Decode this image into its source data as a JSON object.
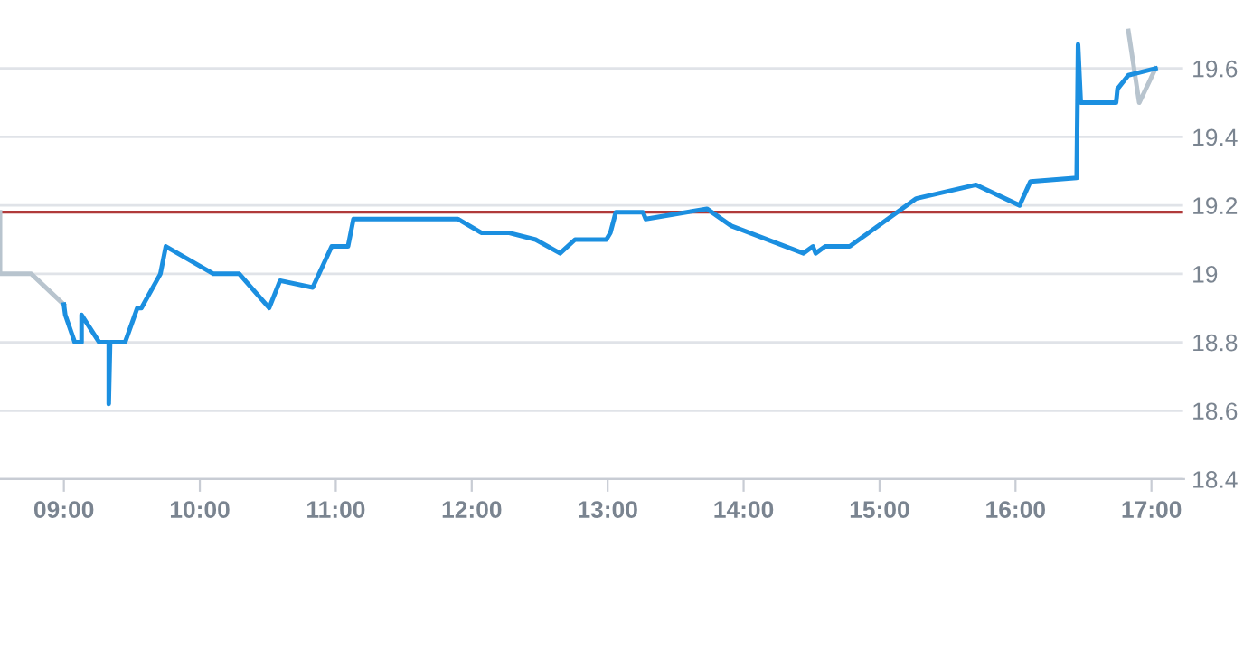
{
  "chart_data": {
    "type": "line",
    "series": [
      {
        "color": "#b8c4ce",
        "x": [
          8.53,
          8.53,
          8.76,
          9.0
        ],
        "values": [
          19.18,
          19.0,
          19.0,
          18.91
        ]
      },
      {
        "color": "#b8c4ce",
        "x": [
          16.83,
          16.91,
          17.03
        ],
        "values": [
          19.71,
          19.5,
          19.6
        ]
      },
      {
        "color": "#1b8fe0",
        "x": [
          9.0,
          9.01,
          9.08,
          9.13,
          9.13,
          9.26,
          9.33,
          9.33,
          9.34,
          9.45,
          9.54,
          9.57,
          9.71,
          9.75,
          10.1,
          10.29,
          10.51,
          10.59,
          10.83,
          10.97,
          11.09,
          11.13,
          11.9,
          12.07,
          12.27,
          12.47,
          12.65,
          12.76,
          12.99,
          13.02,
          13.06,
          13.26,
          13.28,
          13.73,
          13.91,
          14.44,
          14.51,
          14.53,
          14.6,
          14.78,
          15.27,
          15.71,
          16.03,
          16.11,
          16.45,
          16.46,
          16.48,
          16.74,
          16.75,
          16.83,
          17.03
        ],
        "values": [
          18.91,
          18.88,
          18.8,
          18.8,
          18.88,
          18.8,
          18.8,
          18.62,
          18.8,
          18.8,
          18.9,
          18.9,
          19.0,
          19.08,
          19.0,
          19.0,
          18.9,
          18.98,
          18.96,
          19.08,
          19.08,
          19.16,
          19.16,
          19.12,
          19.12,
          19.1,
          19.06,
          19.1,
          19.1,
          19.12,
          19.18,
          19.18,
          19.16,
          19.19,
          19.14,
          19.06,
          19.08,
          19.06,
          19.08,
          19.08,
          19.22,
          19.26,
          19.2,
          19.27,
          19.28,
          19.67,
          19.5,
          19.5,
          19.54,
          19.58,
          19.6
        ]
      }
    ],
    "xlim": [
      8.53,
      17.24
    ],
    "xticks": [
      {
        "value": 9,
        "label": "09:00"
      },
      {
        "value": 10,
        "label": "10:00"
      },
      {
        "value": 11,
        "label": "11:00"
      },
      {
        "value": 12,
        "label": "12:00"
      },
      {
        "value": 13,
        "label": "13:00"
      },
      {
        "value": 14,
        "label": "14:00"
      },
      {
        "value": 15,
        "label": "15:00"
      },
      {
        "value": 16,
        "label": "16:00"
      },
      {
        "value": 17,
        "label": "17:00"
      }
    ],
    "ylim": [
      18.4,
      19.8
    ],
    "yticks": [
      18.4,
      18.6,
      18.8,
      {
        "value": 19.0,
        "label": "19"
      },
      19.2,
      19.4,
      19.6
    ],
    "ref_lines": [
      {
        "axis": "y",
        "value": 19.18,
        "color": "#b03a3a"
      }
    ],
    "grid": "y",
    "marker": "none",
    "line_style": "solid"
  }
}
